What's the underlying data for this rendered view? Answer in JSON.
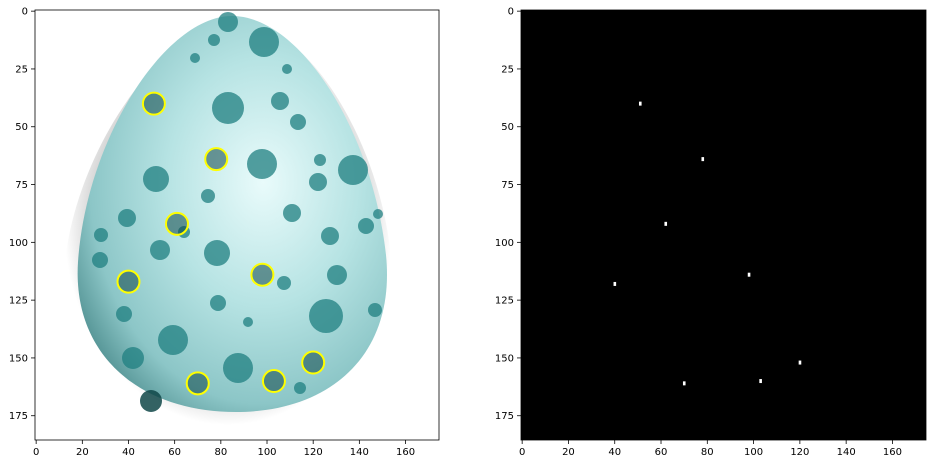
{
  "colors": {
    "figure_bg": "#ffffff",
    "egg_light": "#e9fbfb",
    "egg_mid": "#9ed6d6",
    "egg_dark": "#4f8f90",
    "spot": "#1f7f80",
    "spot_dark": "#0f4748",
    "circle": "#ffff00",
    "mask_bg": "#000000",
    "mask_dot": "#ffffff"
  },
  "axes": [
    {
      "x_ticks": [
        "0",
        "20",
        "40",
        "60",
        "80",
        "100",
        "120",
        "140",
        "160"
      ],
      "y_ticks": [
        "0",
        "25",
        "50",
        "75",
        "100",
        "125",
        "150",
        "175"
      ]
    },
    {
      "x_ticks": [
        "0",
        "20",
        "40",
        "60",
        "80",
        "100",
        "120",
        "140",
        "160"
      ],
      "y_ticks": [
        "0",
        "25",
        "50",
        "75",
        "100",
        "125",
        "150",
        "175"
      ]
    }
  ],
  "chart_data": [
    {
      "type": "image",
      "xlim": [
        -0.5,
        174.5
      ],
      "ylim": [
        185.5,
        -0.5
      ],
      "detected_circles": [
        {
          "x": 51,
          "y": 40
        },
        {
          "x": 78,
          "y": 64
        },
        {
          "x": 61,
          "y": 92
        },
        {
          "x": 40,
          "y": 117
        },
        {
          "x": 98,
          "y": 114
        },
        {
          "x": 120,
          "y": 152
        },
        {
          "x": 70,
          "y": 161
        },
        {
          "x": 103,
          "y": 160
        }
      ]
    },
    {
      "type": "image",
      "xlim": [
        -0.5,
        174.5
      ],
      "ylim": [
        185.5,
        -0.5
      ],
      "mask_points": [
        {
          "x": 51,
          "y": 40
        },
        {
          "x": 78,
          "y": 64
        },
        {
          "x": 62,
          "y": 92
        },
        {
          "x": 40,
          "y": 118
        },
        {
          "x": 98,
          "y": 114
        },
        {
          "x": 120,
          "y": 152
        },
        {
          "x": 70,
          "y": 161
        },
        {
          "x": 103,
          "y": 160
        }
      ]
    }
  ]
}
